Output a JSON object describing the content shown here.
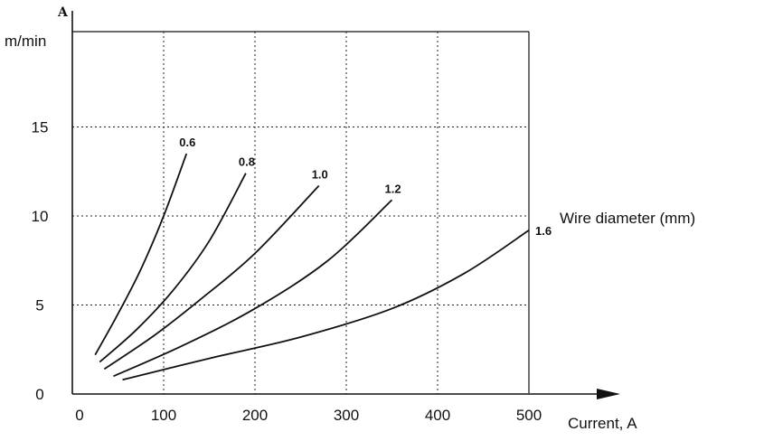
{
  "chart_data": {
    "type": "line",
    "title": "",
    "y_axis_top_mark": "A",
    "ylabel": "m/min",
    "xlabel": "Current, A",
    "legend_title": "Wire diameter (mm)",
    "xlim": [
      0,
      500
    ],
    "ylim": [
      0,
      16
    ],
    "x_ticks": [
      "0",
      "100",
      "200",
      "300",
      "400",
      "500"
    ],
    "y_ticks": [
      "0",
      "5",
      "10",
      "15"
    ],
    "grid": "dotted",
    "series": [
      {
        "name": "0.6",
        "points": [
          [
            25,
            2.2
          ],
          [
            50,
            4.5
          ],
          [
            75,
            7.0
          ],
          [
            100,
            10.0
          ],
          [
            125,
            13.5
          ]
        ]
      },
      {
        "name": "0.8",
        "points": [
          [
            30,
            1.8
          ],
          [
            70,
            3.6
          ],
          [
            110,
            5.8
          ],
          [
            150,
            8.6
          ],
          [
            190,
            12.4
          ]
        ]
      },
      {
        "name": "1.0",
        "points": [
          [
            35,
            1.4
          ],
          [
            90,
            3.3
          ],
          [
            140,
            5.3
          ],
          [
            200,
            7.9
          ],
          [
            270,
            11.7
          ]
        ]
      },
      {
        "name": "1.2",
        "points": [
          [
            45,
            1.0
          ],
          [
            120,
            2.7
          ],
          [
            200,
            4.8
          ],
          [
            280,
            7.5
          ],
          [
            350,
            10.9
          ]
        ]
      },
      {
        "name": "1.6",
        "points": [
          [
            55,
            0.8
          ],
          [
            150,
            2.0
          ],
          [
            250,
            3.2
          ],
          [
            350,
            4.8
          ],
          [
            430,
            6.8
          ],
          [
            500,
            9.2
          ]
        ]
      }
    ]
  }
}
